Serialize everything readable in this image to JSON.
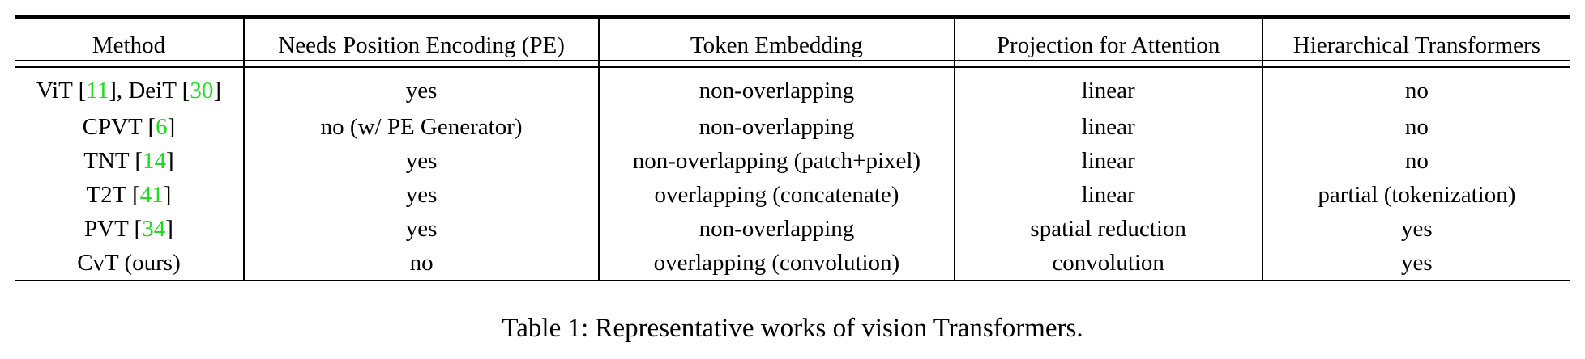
{
  "table": {
    "headers": [
      "Method",
      "Needs Position Encoding (PE)",
      "Token Embedding",
      "Projection for Attention",
      "Hierarchical Transformers"
    ],
    "rows": [
      {
        "method": {
          "parts": [
            {
              "text": "ViT [",
              "ref": false
            },
            {
              "text": "11",
              "ref": true
            },
            {
              "text": "], DeiT [",
              "ref": false
            },
            {
              "text": "30",
              "ref": true
            },
            {
              "text": "]",
              "ref": false
            }
          ]
        },
        "pe": "yes",
        "token_embedding": "non-overlapping",
        "projection": "linear",
        "hierarchical": "no"
      },
      {
        "method": {
          "parts": [
            {
              "text": "CPVT [",
              "ref": false
            },
            {
              "text": "6",
              "ref": true
            },
            {
              "text": "]",
              "ref": false
            }
          ]
        },
        "pe": "no (w/ PE Generator)",
        "token_embedding": "non-overlapping",
        "projection": "linear",
        "hierarchical": "no"
      },
      {
        "method": {
          "parts": [
            {
              "text": "TNT [",
              "ref": false
            },
            {
              "text": "14",
              "ref": true
            },
            {
              "text": "]",
              "ref": false
            }
          ]
        },
        "pe": "yes",
        "token_embedding": "non-overlapping (patch+pixel)",
        "projection": "linear",
        "hierarchical": "no"
      },
      {
        "method": {
          "parts": [
            {
              "text": "T2T [",
              "ref": false
            },
            {
              "text": "41",
              "ref": true
            },
            {
              "text": "]",
              "ref": false
            }
          ]
        },
        "pe": "yes",
        "token_embedding": "overlapping (concatenate)",
        "projection": "linear",
        "hierarchical": "partial (tokenization)"
      },
      {
        "method": {
          "parts": [
            {
              "text": "PVT [",
              "ref": false
            },
            {
              "text": "34",
              "ref": true
            },
            {
              "text": "]",
              "ref": false
            }
          ]
        },
        "pe": "yes",
        "token_embedding": "non-overlapping",
        "projection": "spatial reduction",
        "hierarchical": "yes"
      },
      {
        "method": {
          "parts": [
            {
              "text": "CvT (ours)",
              "ref": false
            }
          ]
        },
        "pe": "no",
        "token_embedding": "overlapping (convolution)",
        "projection": "convolution",
        "hierarchical": "yes"
      }
    ]
  },
  "caption": "Table 1: Representative works of vision Transformers.",
  "colors": {
    "reference_link": "#1fdc1f",
    "text": "#000000"
  }
}
